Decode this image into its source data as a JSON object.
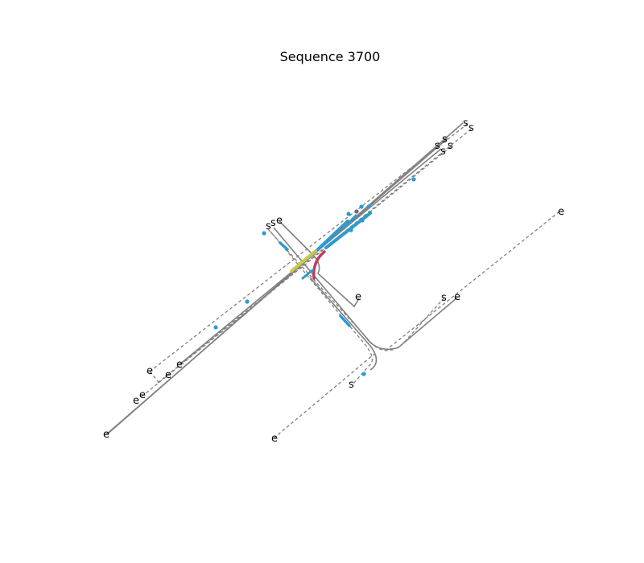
{
  "title": "Sequence 3700",
  "colors": {
    "lane": "#808080",
    "agent": "#2b9bd1",
    "ego_path": "#c33b5a",
    "other_path": "#c8c84a",
    "marker": "#6a6a8a"
  },
  "labels": {
    "start": "s",
    "end": "e"
  }
}
